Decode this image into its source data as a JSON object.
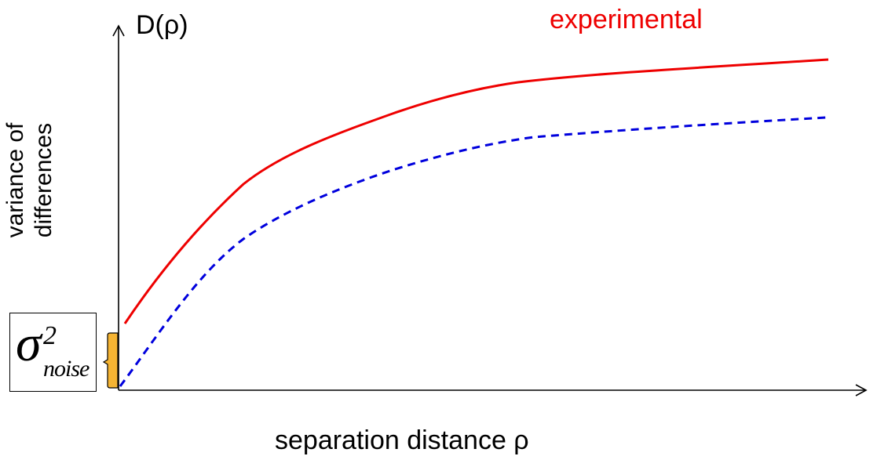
{
  "labels": {
    "y_axis_symbol": "D(ρ)",
    "y_axis_line1": "variance of",
    "y_axis_line2": "differences",
    "x_axis": "separation distance ρ",
    "experimental": "experimental",
    "noise_symbol": "σ",
    "noise_superscript": "2",
    "noise_subscript": "noise"
  },
  "colors": {
    "experimental": "#ee0000",
    "dashed": "#0000dd",
    "bracket": "#f5b433",
    "axis": "#000000"
  }
}
